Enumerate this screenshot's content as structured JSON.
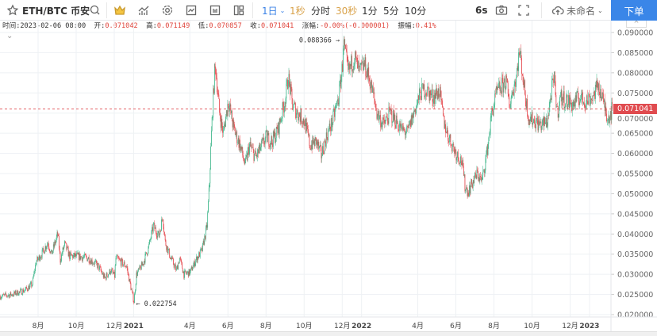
{
  "toolbar": {
    "symbol": "ETH/BTC 币安",
    "intervals": [
      {
        "label": "1日",
        "color": "blue"
      },
      {
        "label": "1秒",
        "color": "gold"
      },
      {
        "label": "分时",
        "color": "normal"
      },
      {
        "label": "30秒",
        "color": "gold"
      },
      {
        "label": "1分",
        "color": "normal"
      },
      {
        "label": "5分",
        "color": "normal"
      },
      {
        "label": "10分",
        "color": "normal"
      }
    ],
    "refresh": "6s",
    "layout_name": "未命名",
    "order_button": "下单",
    "icons": [
      "star-icon",
      "search-icon",
      "crown-icon",
      "indicators-icon",
      "gear-icon",
      "chart-template-icon",
      "layout-icon",
      "multi-chart-icon",
      "chevron-down-icon",
      "camera-icon",
      "fullscreen-icon",
      "cloud-upload-icon"
    ]
  },
  "info": {
    "time_label": "时间:",
    "time": "2023-02-06 08:00",
    "open_label": "开:",
    "open": "0.071042",
    "high_label": "高:",
    "high": "0.071149",
    "low_label": "低:",
    "low": "0.070857",
    "close_label": "收:",
    "close": "0.071041",
    "change_label": "涨幅:",
    "change": "-0.00%(-0.000001)",
    "amplitude_label": "振幅:",
    "amplitude": "0.41%"
  },
  "price_tag": "0.071041",
  "colors": {
    "up": "#3fb68b",
    "down": "#e5484d",
    "accent": "#3a86e8",
    "last_price": "#e04b4f"
  },
  "chart_data": {
    "type": "candlestick",
    "title": "ETH/BTC 币安 1日",
    "ylim": [
      0.02,
      0.09
    ],
    "y_ticks": [
      "0.090000",
      "0.085000",
      "0.080000",
      "0.075000",
      "0.070000",
      "0.065000",
      "0.060000",
      "0.055000",
      "0.050000",
      "0.045000",
      "0.040000",
      "0.035000",
      "0.030000",
      "0.025000",
      "0.020000"
    ],
    "x_ticks": [
      {
        "date": "2020-08-01",
        "label": "8月"
      },
      {
        "date": "2020-10-01",
        "label": "10月"
      },
      {
        "date": "2020-12-01",
        "label": "12月"
      },
      {
        "date": "2021-01-01",
        "label": "2021",
        "bold": true
      },
      {
        "date": "2021-04-01",
        "label": "4月"
      },
      {
        "date": "2021-06-01",
        "label": "6月"
      },
      {
        "date": "2021-08-01",
        "label": "8月"
      },
      {
        "date": "2021-10-01",
        "label": "10月"
      },
      {
        "date": "2021-12-01",
        "label": "12月"
      },
      {
        "date": "2022-01-01",
        "label": "2022",
        "bold": true
      },
      {
        "date": "2022-04-01",
        "label": "4月"
      },
      {
        "date": "2022-06-01",
        "label": "6月"
      },
      {
        "date": "2022-08-01",
        "label": "8月"
      },
      {
        "date": "2022-10-01",
        "label": "10月"
      },
      {
        "date": "2022-12-01",
        "label": "12月"
      },
      {
        "date": "2023-01-01",
        "label": "2023",
        "bold": true
      }
    ],
    "x_range": [
      "2020-06-01",
      "2023-02-15"
    ],
    "last_price": 0.071041,
    "annotations": [
      {
        "label": "0.088366",
        "date": "2021-12-02",
        "value": 0.088366,
        "type": "high"
      },
      {
        "label": "0.022754",
        "date": "2021-01-01",
        "value": 0.022754,
        "type": "low"
      }
    ],
    "close_keypoints": [
      [
        "2020-06-01",
        0.0245
      ],
      [
        "2020-06-20",
        0.025
      ],
      [
        "2020-07-10",
        0.026
      ],
      [
        "2020-07-22",
        0.0275
      ],
      [
        "2020-07-28",
        0.033
      ],
      [
        "2020-08-08",
        0.0355
      ],
      [
        "2020-08-16",
        0.038
      ],
      [
        "2020-08-22",
        0.035
      ],
      [
        "2020-09-01",
        0.04
      ],
      [
        "2020-09-05",
        0.0335
      ],
      [
        "2020-09-12",
        0.0375
      ],
      [
        "2020-09-20",
        0.0345
      ],
      [
        "2020-10-01",
        0.0345
      ],
      [
        "2020-10-20",
        0.034
      ],
      [
        "2020-11-05",
        0.032
      ],
      [
        "2020-11-15",
        0.029
      ],
      [
        "2020-11-25",
        0.031
      ],
      [
        "2020-12-01",
        0.0295
      ],
      [
        "2020-12-03",
        0.034
      ],
      [
        "2020-12-20",
        0.032
      ],
      [
        "2020-12-30",
        0.0245
      ],
      [
        "2021-01-01",
        0.0232
      ],
      [
        "2021-01-05",
        0.03
      ],
      [
        "2021-01-15",
        0.0325
      ],
      [
        "2021-01-25",
        0.037
      ],
      [
        "2021-02-01",
        0.042
      ],
      [
        "2021-02-10",
        0.0395
      ],
      [
        "2021-02-16",
        0.0445
      ],
      [
        "2021-02-20",
        0.038
      ],
      [
        "2021-03-01",
        0.034
      ],
      [
        "2021-03-10",
        0.031
      ],
      [
        "2021-03-15",
        0.034
      ],
      [
        "2021-03-22",
        0.03
      ],
      [
        "2021-04-01",
        0.0305
      ],
      [
        "2021-04-10",
        0.0335
      ],
      [
        "2021-04-20",
        0.036
      ],
      [
        "2021-04-28",
        0.042
      ],
      [
        "2021-05-02",
        0.053
      ],
      [
        "2021-05-05",
        0.065
      ],
      [
        "2021-05-10",
        0.08
      ],
      [
        "2021-05-12",
        0.081
      ],
      [
        "2021-05-18",
        0.07
      ],
      [
        "2021-05-24",
        0.065
      ],
      [
        "2021-06-01",
        0.073
      ],
      [
        "2021-06-10",
        0.066
      ],
      [
        "2021-06-20",
        0.062
      ],
      [
        "2021-06-28",
        0.057
      ],
      [
        "2021-07-05",
        0.062
      ],
      [
        "2021-07-15",
        0.059
      ],
      [
        "2021-07-25",
        0.062
      ],
      [
        "2021-08-01",
        0.064
      ],
      [
        "2021-08-10",
        0.063
      ],
      [
        "2021-08-20",
        0.066
      ],
      [
        "2021-09-01",
        0.074
      ],
      [
        "2021-09-05",
        0.079
      ],
      [
        "2021-09-12",
        0.072
      ],
      [
        "2021-09-20",
        0.07
      ],
      [
        "2021-10-01",
        0.068
      ],
      [
        "2021-10-10",
        0.062
      ],
      [
        "2021-10-20",
        0.063
      ],
      [
        "2021-10-28",
        0.0595
      ],
      [
        "2021-11-05",
        0.064
      ],
      [
        "2021-11-15",
        0.068
      ],
      [
        "2021-11-25",
        0.074
      ],
      [
        "2021-12-01",
        0.082
      ],
      [
        "2021-12-02",
        0.0875
      ],
      [
        "2021-12-05",
        0.085
      ],
      [
        "2021-12-10",
        0.08
      ],
      [
        "2021-12-20",
        0.084
      ],
      [
        "2021-12-28",
        0.08
      ],
      [
        "2022-01-05",
        0.082
      ],
      [
        "2022-01-12",
        0.079
      ],
      [
        "2022-01-20",
        0.074
      ],
      [
        "2022-01-25",
        0.07
      ],
      [
        "2022-02-05",
        0.067
      ],
      [
        "2022-02-15",
        0.07
      ],
      [
        "2022-02-25",
        0.068
      ],
      [
        "2022-03-05",
        0.066
      ],
      [
        "2022-03-15",
        0.065
      ],
      [
        "2022-03-25",
        0.07
      ],
      [
        "2022-04-05",
        0.075
      ],
      [
        "2022-04-12",
        0.076
      ],
      [
        "2022-04-25",
        0.074
      ],
      [
        "2022-05-05",
        0.0755
      ],
      [
        "2022-05-12",
        0.068
      ],
      [
        "2022-05-20",
        0.064
      ],
      [
        "2022-06-01",
        0.06
      ],
      [
        "2022-06-10",
        0.058
      ],
      [
        "2022-06-15",
        0.052
      ],
      [
        "2022-06-20",
        0.0505
      ],
      [
        "2022-06-28",
        0.053
      ],
      [
        "2022-07-05",
        0.055
      ],
      [
        "2022-07-12",
        0.053
      ],
      [
        "2022-07-20",
        0.06
      ],
      [
        "2022-07-28",
        0.07
      ],
      [
        "2022-08-05",
        0.075
      ],
      [
        "2022-08-10",
        0.076
      ],
      [
        "2022-08-20",
        0.078
      ],
      [
        "2022-08-25",
        0.072
      ],
      [
        "2022-09-05",
        0.079
      ],
      [
        "2022-09-10",
        0.085
      ],
      [
        "2022-09-13",
        0.083
      ],
      [
        "2022-09-18",
        0.076
      ],
      [
        "2022-09-25",
        0.069
      ],
      [
        "2022-10-05",
        0.068
      ],
      [
        "2022-10-15",
        0.067
      ],
      [
        "2022-10-25",
        0.068
      ],
      [
        "2022-11-01",
        0.076
      ],
      [
        "2022-11-05",
        0.078
      ],
      [
        "2022-11-10",
        0.07
      ],
      [
        "2022-11-15",
        0.074
      ],
      [
        "2022-11-25",
        0.073
      ],
      [
        "2022-12-05",
        0.072
      ],
      [
        "2022-12-15",
        0.074
      ],
      [
        "2022-12-25",
        0.073
      ],
      [
        "2023-01-05",
        0.074
      ],
      [
        "2023-01-15",
        0.077
      ],
      [
        "2023-01-22",
        0.073
      ],
      [
        "2023-01-30",
        0.069
      ],
      [
        "2023-02-03",
        0.07
      ],
      [
        "2023-02-06",
        0.071041
      ]
    ]
  }
}
